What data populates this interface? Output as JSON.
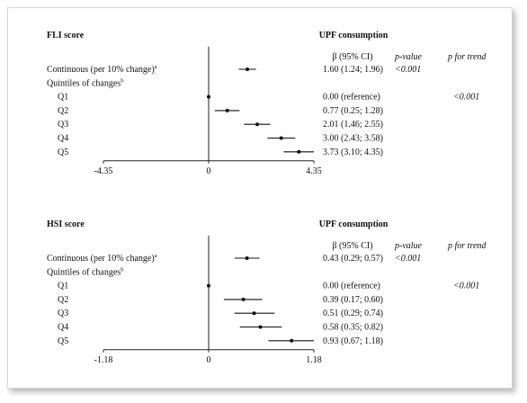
{
  "chart_data": [
    {
      "type": "forest",
      "left_header": "FLI score",
      "title": "UPF consumption",
      "col_estimate": "β (95% CI)",
      "col_pvalue": "p-value",
      "col_trend": "p for trend",
      "section_label": "Quintiles of changes",
      "section_sup": "b",
      "rows": [
        {
          "label": "Continuous (per 10% change)",
          "sup": "a",
          "beta": 1.6,
          "lo": 1.24,
          "hi": 1.96,
          "est_text": "1.60 (1.24; 1.96)",
          "p": "<0.001",
          "trend": ""
        },
        {
          "label": "Q1",
          "sup": "",
          "beta": 0.0,
          "lo": 0.0,
          "hi": 0.0,
          "est_text": "0.00 (reference)",
          "p": "",
          "trend": "<0.001"
        },
        {
          "label": "Q2",
          "sup": "",
          "beta": 0.77,
          "lo": 0.25,
          "hi": 1.28,
          "est_text": "0.77 (0.25; 1.28)",
          "p": "",
          "trend": ""
        },
        {
          "label": "Q3",
          "sup": "",
          "beta": 2.01,
          "lo": 1.46,
          "hi": 2.55,
          "est_text": "2.01 (1.46; 2.55)",
          "p": "",
          "trend": ""
        },
        {
          "label": "Q4",
          "sup": "",
          "beta": 3.0,
          "lo": 2.43,
          "hi": 3.58,
          "est_text": "3.00 (2.43; 3.58)",
          "p": "",
          "trend": ""
        },
        {
          "label": "Q5",
          "sup": "",
          "beta": 3.73,
          "lo": 3.1,
          "hi": 4.35,
          "est_text": "3.73 (3.10; 4.35)",
          "p": "",
          "trend": ""
        }
      ],
      "xlim": [
        -4.35,
        4.35
      ],
      "ticks": [
        "-4.35",
        "0",
        "4.35"
      ]
    },
    {
      "type": "forest",
      "left_header": "HSI score",
      "title": "UPF consumption",
      "col_estimate": "β (95% CI)",
      "col_pvalue": "p-value",
      "col_trend": "p for trend",
      "section_label": "Quintiles of changes",
      "section_sup": "b",
      "rows": [
        {
          "label": "Continuous (per 10% change)",
          "sup": "a",
          "beta": 0.43,
          "lo": 0.29,
          "hi": 0.57,
          "est_text": "0.43 (0.29; 0.57)",
          "p": "<0.001",
          "trend": ""
        },
        {
          "label": "Q1",
          "sup": "",
          "beta": 0.0,
          "lo": 0.0,
          "hi": 0.0,
          "est_text": "0.00 (reference)",
          "p": "",
          "trend": "<0.001"
        },
        {
          "label": "Q2",
          "sup": "",
          "beta": 0.39,
          "lo": 0.17,
          "hi": 0.6,
          "est_text": "0.39 (0.17; 0.60)",
          "p": "",
          "trend": ""
        },
        {
          "label": "Q3",
          "sup": "",
          "beta": 0.51,
          "lo": 0.29,
          "hi": 0.74,
          "est_text": "0.51 (0.29; 0.74)",
          "p": "",
          "trend": ""
        },
        {
          "label": "Q4",
          "sup": "",
          "beta": 0.58,
          "lo": 0.35,
          "hi": 0.82,
          "est_text": "0.58 (0.35; 0.82)",
          "p": "",
          "trend": ""
        },
        {
          "label": "Q5",
          "sup": "",
          "beta": 0.93,
          "lo": 0.67,
          "hi": 1.18,
          "est_text": "0.93 (0.67; 1.18)",
          "p": "",
          "trend": ""
        }
      ],
      "xlim": [
        -1.18,
        1.18
      ],
      "ticks": [
        "-1.18",
        "0",
        "1.18"
      ]
    }
  ]
}
